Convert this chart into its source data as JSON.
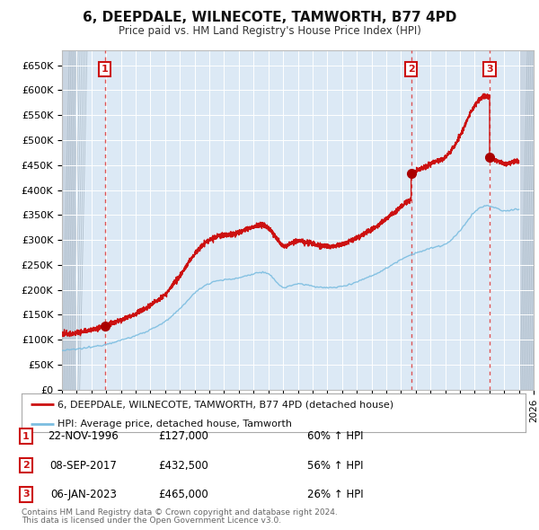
{
  "title": "6, DEEPDALE, WILNECOTE, TAMWORTH, B77 4PD",
  "subtitle": "Price paid vs. HM Land Registry's House Price Index (HPI)",
  "ylabel_ticks": [
    "£0",
    "£50K",
    "£100K",
    "£150K",
    "£200K",
    "£250K",
    "£300K",
    "£350K",
    "£400K",
    "£450K",
    "£500K",
    "£550K",
    "£600K",
    "£650K"
  ],
  "ytick_values": [
    0,
    50000,
    100000,
    150000,
    200000,
    250000,
    300000,
    350000,
    400000,
    450000,
    500000,
    550000,
    600000,
    650000
  ],
  "ylim": [
    0,
    680000
  ],
  "xlim_start": 1994.0,
  "xlim_end": 2026.0,
  "sale_dates_decimal": [
    1996.896,
    2017.688,
    2023.014
  ],
  "sale_prices": [
    127000,
    432500,
    465000
  ],
  "sale_labels": [
    "1",
    "2",
    "3"
  ],
  "legend_line1": "6, DEEPDALE, WILNECOTE, TAMWORTH, B77 4PD (detached house)",
  "legend_line2": "HPI: Average price, detached house, Tamworth",
  "table_rows": [
    {
      "num": "1",
      "date": "22-NOV-1996",
      "price": "£127,000",
      "change": "60% ↑ HPI"
    },
    {
      "num": "2",
      "date": "08-SEP-2017",
      "price": "£432,500",
      "change": "56% ↑ HPI"
    },
    {
      "num": "3",
      "date": "06-JAN-2023",
      "price": "£465,000",
      "change": "26% ↑ HPI"
    }
  ],
  "footnote1": "Contains HM Land Registry data © Crown copyright and database right 2024.",
  "footnote2": "This data is licensed under the Open Government Licence v3.0.",
  "hpi_color": "#7bbde0",
  "sale_line_color": "#cc1111",
  "sale_dot_color": "#aa0000",
  "vline_color": "#dd4444",
  "background_color": "#dce9f5",
  "hatch_color": "#c5d3e0",
  "white_grid": "#ffffff",
  "box_bg": "#ffffff"
}
